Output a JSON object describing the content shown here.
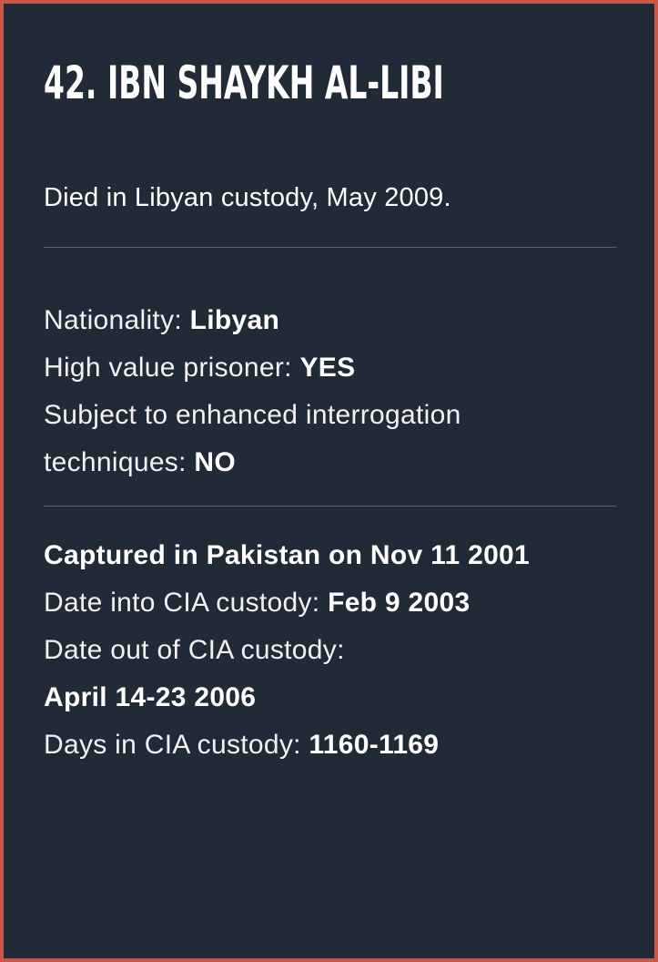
{
  "card": {
    "title": "42. Ibn Shaykh al-Libi",
    "subtitle": "Died in Libyan custody, May 2009.",
    "details": {
      "nationality_label": "Nationality: ",
      "nationality_value": "Libyan",
      "hvp_label": "High value prisoner: ",
      "hvp_value": "YES",
      "eit_label_1": "Subject to enhanced interrogation",
      "eit_label_2": "techniques: ",
      "eit_value": "NO"
    },
    "custody": {
      "captured": "Captured in Pakistan on Nov 11 2001",
      "into_label": "Date into CIA custody: ",
      "into_value": "Feb 9 2003",
      "out_label": "Date out of CIA custody:",
      "out_value": "April 14-23 2006",
      "days_label": "Days in CIA custody: ",
      "days_value": "1160-1169"
    }
  },
  "colors": {
    "border": "#c9574a",
    "background": "#212a37",
    "text": "#ffffff",
    "divider": "#5a6370"
  }
}
